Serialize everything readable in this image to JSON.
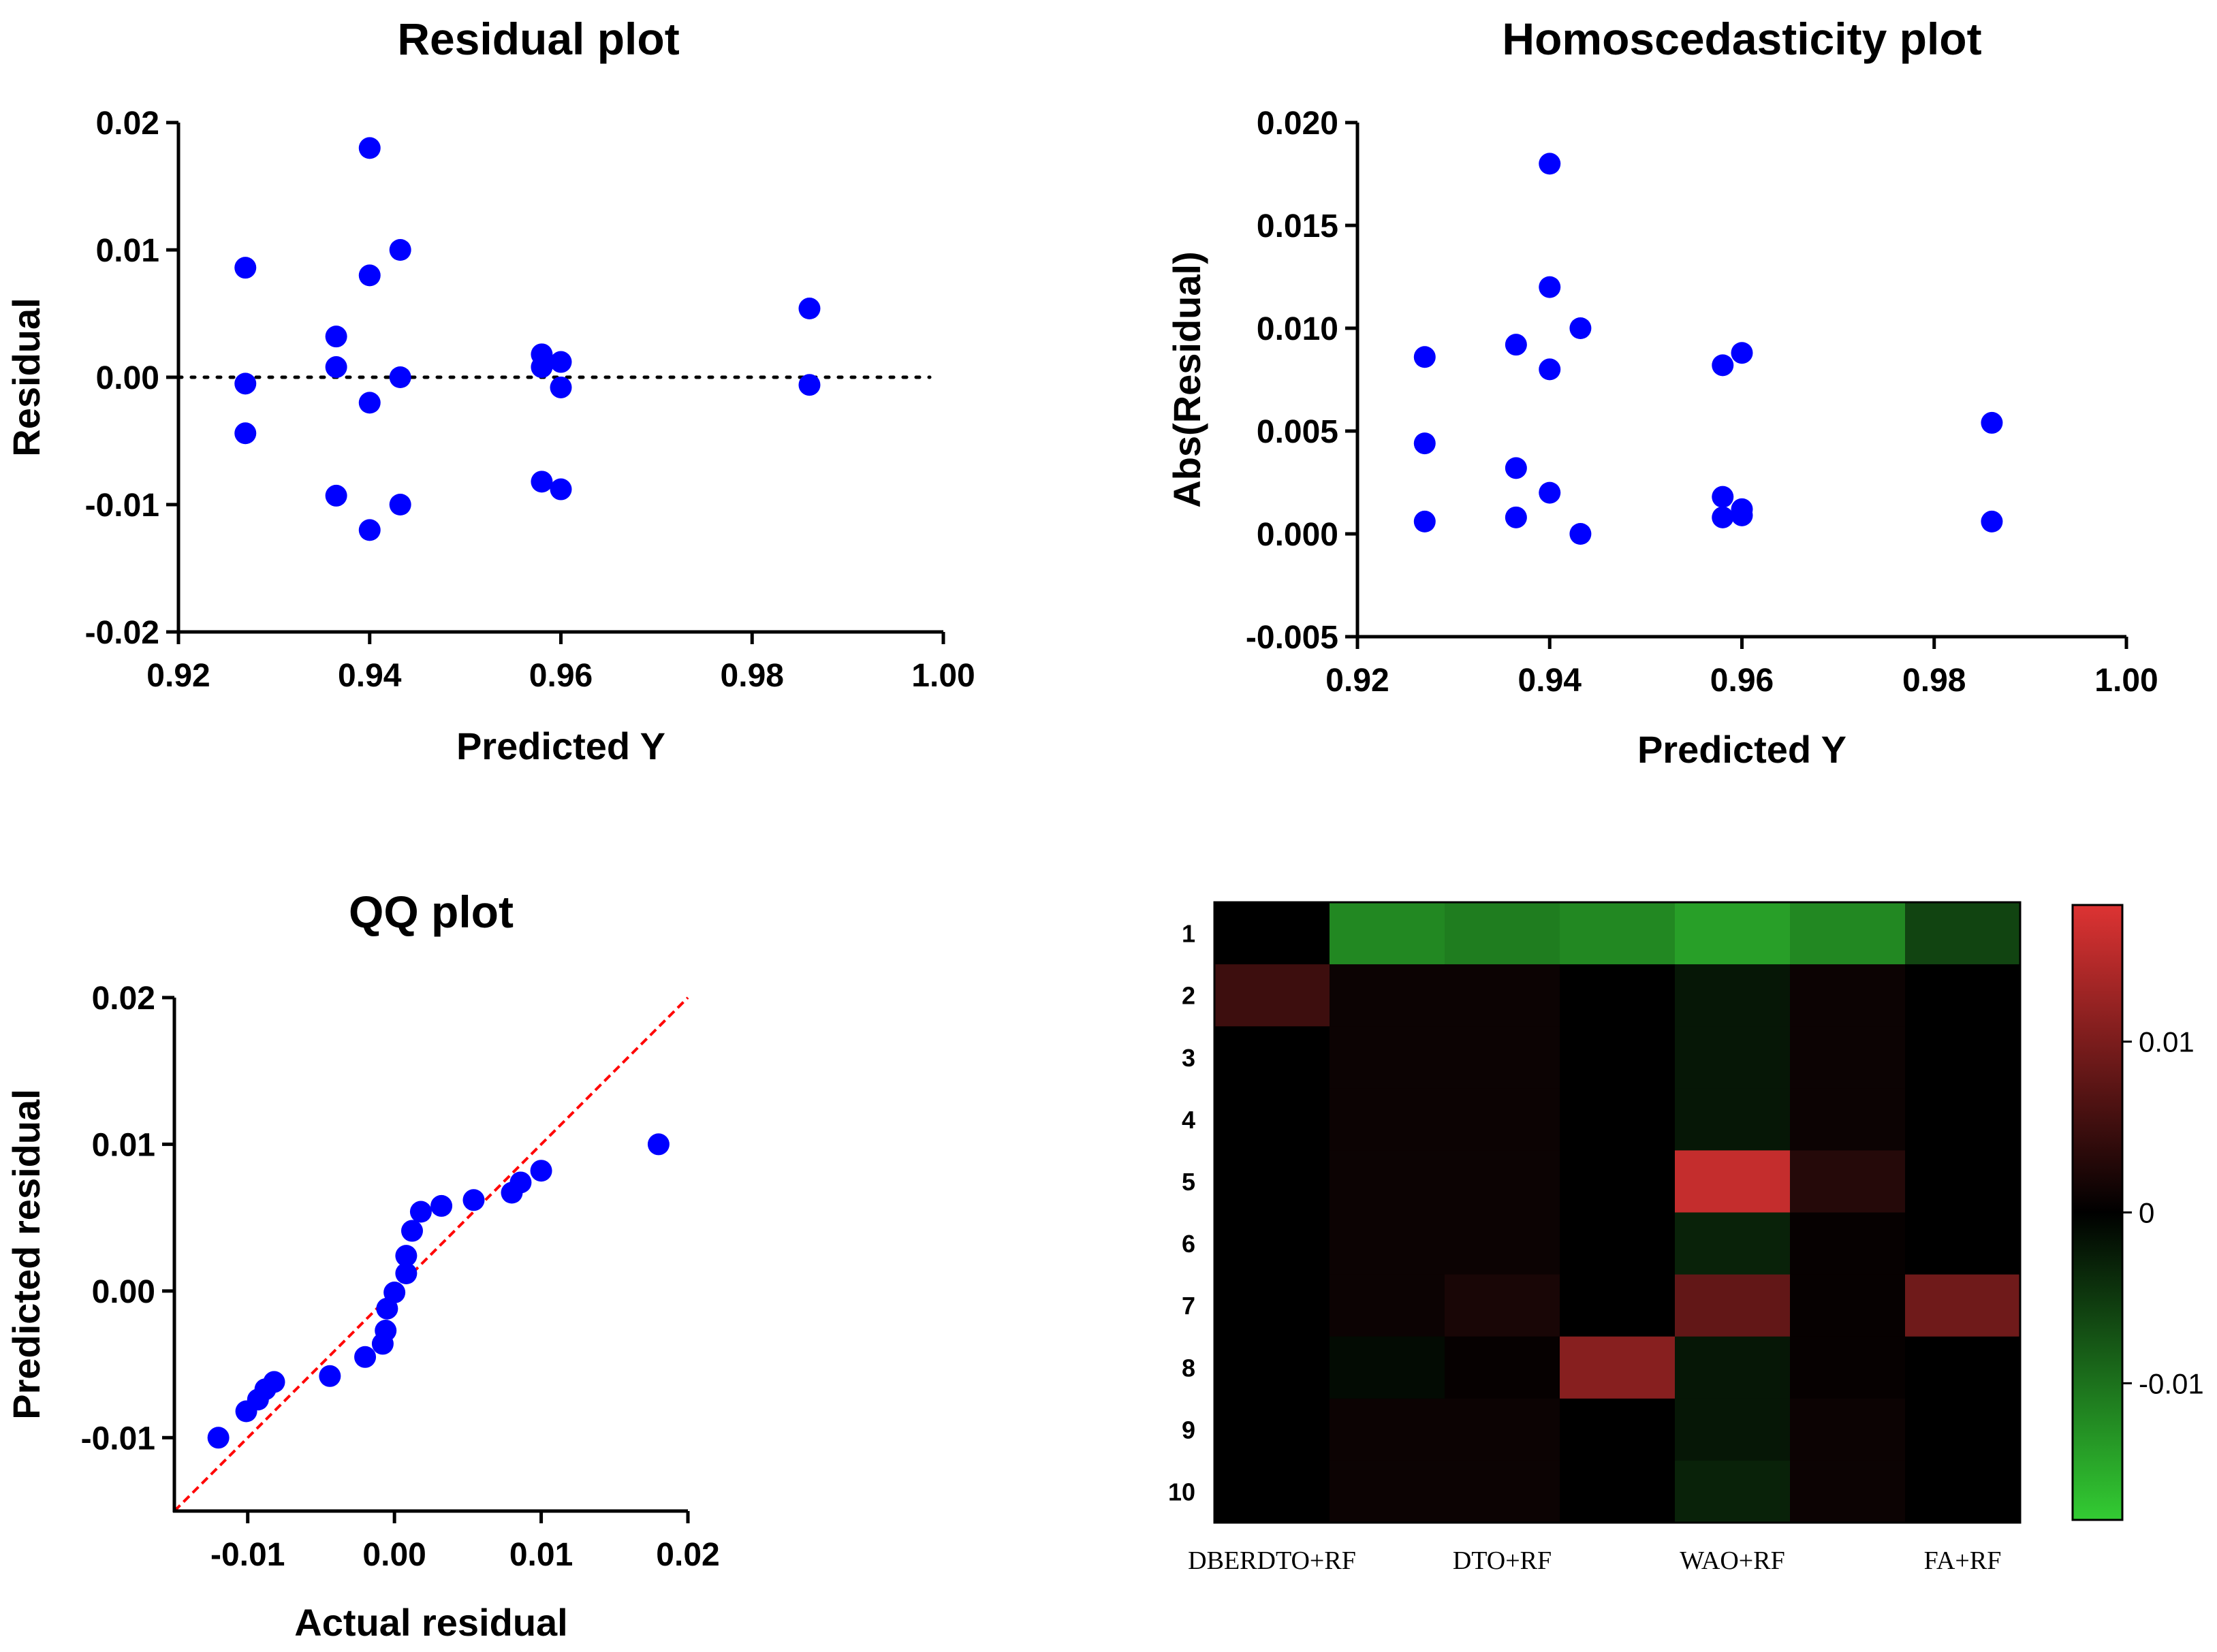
{
  "chart_data": [
    {
      "id": "residual",
      "type": "scatter",
      "title": "Residual plot",
      "xlabel": "Predicted Y",
      "ylabel": "Residual",
      "xlim": [
        0.92,
        1.0
      ],
      "ylim": [
        -0.02,
        0.02
      ],
      "xticks": [
        0.92,
        0.94,
        0.96,
        0.98,
        1.0
      ],
      "xtick_labels": [
        "0.92",
        "0.94",
        "0.96",
        "0.98",
        "1.00"
      ],
      "yticks": [
        -0.02,
        -0.01,
        0.0,
        0.01,
        0.02
      ],
      "ytick_labels": [
        "-0.02",
        "-0.01",
        "0.00",
        "0.01",
        "0.02"
      ],
      "zero_line": true,
      "points": [
        [
          0.927,
          0.0086
        ],
        [
          0.927,
          -0.0005
        ],
        [
          0.927,
          -0.0044
        ],
        [
          0.9365,
          0.0032
        ],
        [
          0.9365,
          0.0008
        ],
        [
          0.9365,
          -0.0093
        ],
        [
          0.94,
          0.018
        ],
        [
          0.94,
          0.008
        ],
        [
          0.94,
          -0.002
        ],
        [
          0.94,
          -0.012
        ],
        [
          0.9432,
          0.01
        ],
        [
          0.9432,
          0.0
        ],
        [
          0.9432,
          -0.01
        ],
        [
          0.958,
          0.0018
        ],
        [
          0.958,
          0.0008
        ],
        [
          0.958,
          -0.0082
        ],
        [
          0.96,
          0.0012
        ],
        [
          0.96,
          -0.0008
        ],
        [
          0.96,
          -0.0088
        ],
        [
          0.986,
          0.0054
        ],
        [
          0.986,
          -0.0006
        ]
      ]
    },
    {
      "id": "homoscedasticity",
      "type": "scatter",
      "title": "Homoscedasticity plot",
      "xlabel": "Predicted Y",
      "ylabel": "Abs(Residual)",
      "xlim": [
        0.92,
        1.0
      ],
      "ylim": [
        -0.005,
        0.02
      ],
      "xticks": [
        0.92,
        0.94,
        0.96,
        0.98,
        1.0
      ],
      "xtick_labels": [
        "0.92",
        "0.94",
        "0.96",
        "0.98",
        "1.00"
      ],
      "yticks": [
        -0.005,
        0.0,
        0.005,
        0.01,
        0.015,
        0.02
      ],
      "ytick_labels": [
        "-0.005",
        "0.000",
        "0.005",
        "0.010",
        "0.015",
        "0.020"
      ],
      "points": [
        [
          0.927,
          0.0086
        ],
        [
          0.927,
          0.0044
        ],
        [
          0.927,
          0.0006
        ],
        [
          0.9365,
          0.0092
        ],
        [
          0.9365,
          0.0032
        ],
        [
          0.9365,
          0.0008
        ],
        [
          0.94,
          0.018
        ],
        [
          0.94,
          0.012
        ],
        [
          0.94,
          0.008
        ],
        [
          0.94,
          0.002
        ],
        [
          0.9432,
          0.01
        ],
        [
          0.9432,
          0.0
        ],
        [
          0.958,
          0.0082
        ],
        [
          0.958,
          0.0018
        ],
        [
          0.958,
          0.0008
        ],
        [
          0.96,
          0.0088
        ],
        [
          0.96,
          0.0012
        ],
        [
          0.96,
          0.0009
        ],
        [
          0.986,
          0.0054
        ],
        [
          0.986,
          0.0006
        ]
      ]
    },
    {
      "id": "qq",
      "type": "scatter",
      "title": "QQ plot",
      "xlabel": "Actual residual",
      "ylabel": "Predicted residual",
      "xlim": [
        -0.015,
        0.02
      ],
      "ylim": [
        -0.015,
        0.02
      ],
      "xticks": [
        -0.01,
        0.0,
        0.01,
        0.02
      ],
      "xtick_labels": [
        "-0.01",
        "0.00",
        "0.01",
        "0.02"
      ],
      "yticks": [
        -0.01,
        0.0,
        0.01,
        0.02
      ],
      "ytick_labels": [
        "-0.01",
        "0.00",
        "0.01",
        "0.02"
      ],
      "reference_line": "y = x",
      "points": [
        [
          -0.012,
          -0.01
        ],
        [
          -0.0101,
          -0.0082
        ],
        [
          -0.0093,
          -0.0074
        ],
        [
          -0.0088,
          -0.0067
        ],
        [
          -0.0082,
          -0.0062
        ],
        [
          -0.0044,
          -0.0058
        ],
        [
          -0.002,
          -0.0045
        ],
        [
          -0.0008,
          -0.0036
        ],
        [
          -0.0006,
          -0.0027
        ],
        [
          -0.0005,
          -0.0012
        ],
        [
          0.0,
          -0.0001
        ],
        [
          0.0008,
          0.0012
        ],
        [
          0.0008,
          0.0024
        ],
        [
          0.0012,
          0.0041
        ],
        [
          0.0018,
          0.0054
        ],
        [
          0.0032,
          0.0058
        ],
        [
          0.0054,
          0.0062
        ],
        [
          0.008,
          0.0067
        ],
        [
          0.0086,
          0.0074
        ],
        [
          0.01,
          0.0082
        ],
        [
          0.018,
          0.01
        ]
      ]
    },
    {
      "id": "heatmap",
      "type": "heatmap",
      "title": "",
      "rows": [
        "1",
        "2",
        "3",
        "4",
        "5",
        "6",
        "7",
        "8",
        "9",
        "10"
      ],
      "column_labels": [
        "DBERDTO+RF",
        "DTO+RF",
        "WAO+RF",
        "FA+RF"
      ],
      "n_columns": 7,
      "values": [
        [
          0.0,
          -0.012,
          -0.011,
          -0.012,
          -0.014,
          -0.012,
          -0.006
        ],
        [
          0.005,
          0.001,
          0.001,
          0.0,
          -0.002,
          0.001,
          0.0
        ],
        [
          0.0,
          0.001,
          0.001,
          0.0,
          -0.002,
          0.001,
          0.0
        ],
        [
          0.0,
          0.001,
          0.001,
          0.0,
          -0.002,
          0.001,
          0.0
        ],
        [
          0.0,
          0.001,
          0.001,
          0.0,
          0.016,
          0.003,
          0.0
        ],
        [
          0.0,
          0.001,
          0.001,
          0.0,
          -0.003,
          0.0005,
          0.0
        ],
        [
          0.0,
          0.001,
          0.002,
          0.0,
          0.008,
          0.0005,
          0.009
        ],
        [
          0.0,
          -0.001,
          0.0005,
          0.011,
          -0.002,
          0.0005,
          0.0
        ],
        [
          0.0,
          0.001,
          0.001,
          0.0,
          -0.002,
          0.001,
          0.0
        ],
        [
          0.0,
          0.001,
          0.001,
          0.0,
          -0.003,
          0.001,
          0.0
        ]
      ],
      "colorbar": {
        "min": -0.018,
        "max": 0.018,
        "ticks": [
          0.01,
          0.0,
          -0.01
        ],
        "tick_labels": [
          "0.01",
          "0",
          "-0.01"
        ],
        "low_color": "#33cc33",
        "mid_color": "#000000",
        "high_color": "#dd3333"
      }
    }
  ]
}
